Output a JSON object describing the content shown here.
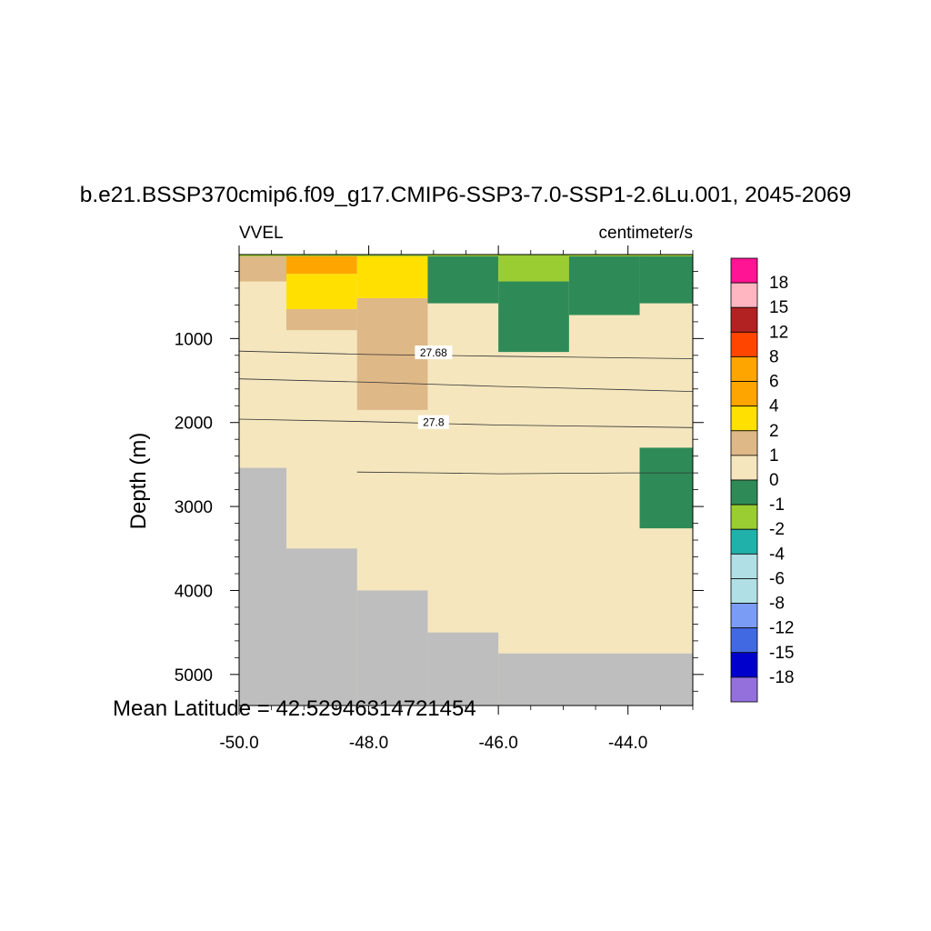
{
  "chart_data": {
    "type": "heatmap",
    "title": "b.e21.BSSP370cmip6.f09_g17.CMIP6-SSP3-7.0-SSP1-2.6Lu.001, 2045-2069",
    "left_string": "VVEL",
    "right_string": "centimeter/s",
    "ylabel": "Depth (m)",
    "footer": "Mean Latitude = 42.52946314721454",
    "x_ticks": [
      "-50.0",
      "-48.0",
      "-46.0",
      "-44.0"
    ],
    "x_tick_values": [
      -50,
      -48,
      -46,
      -44
    ],
    "y_ticks": [
      "1000",
      "2000",
      "3000",
      "4000",
      "5000"
    ],
    "y_tick_values": [
      1000,
      2000,
      3000,
      4000,
      5000
    ],
    "xlim": [
      -50,
      -43
    ],
    "ylim": [
      5370,
      0
    ],
    "background_color": "#f5e6be",
    "missing_color": "#bebebe",
    "cells": [
      {
        "x": [
          -50,
          -49.27
        ],
        "y": [
          0,
          320
        ],
        "level": "1 to 2",
        "color": "#deb887"
      },
      {
        "x": [
          -49.27,
          -48.18
        ],
        "y": [
          0,
          230
        ],
        "level": "4 to 6",
        "color": "#ffa500"
      },
      {
        "x": [
          -49.27,
          -48.18
        ],
        "y": [
          230,
          650
        ],
        "level": "2 to 4",
        "color": "#ffe000"
      },
      {
        "x": [
          -49.27,
          -48.18
        ],
        "y": [
          650,
          900
        ],
        "level": "1 to 2",
        "color": "#deb887"
      },
      {
        "x": [
          -48.18,
          -47.09
        ],
        "y": [
          0,
          520
        ],
        "level": "2 to 4",
        "color": "#ffe000"
      },
      {
        "x": [
          -48.18,
          -47.09
        ],
        "y": [
          520,
          1850
        ],
        "level": "1 to 2",
        "color": "#deb887"
      },
      {
        "x": [
          -47.09,
          -46.0
        ],
        "y": [
          0,
          580
        ],
        "level": "-1 to 0",
        "color": "#2e8b57"
      },
      {
        "x": [
          -46.0,
          -44.91
        ],
        "y": [
          0,
          320
        ],
        "level": "-2 to -1",
        "color": "#9acd32"
      },
      {
        "x": [
          -46.0,
          -44.91
        ],
        "y": [
          320,
          1160
        ],
        "level": "-1 to 0",
        "color": "#2e8b57"
      },
      {
        "x": [
          -44.91,
          -43.82
        ],
        "y": [
          0,
          720
        ],
        "level": "-1 to 0",
        "color": "#2e8b57"
      },
      {
        "x": [
          -43.82,
          -43.0
        ],
        "y": [
          0,
          580
        ],
        "level": "-1 to 0",
        "color": "#2e8b57"
      },
      {
        "x": [
          -43.82,
          -43.0
        ],
        "y": [
          2300,
          3260
        ],
        "level": "-1 to 0",
        "color": "#2e8b57"
      }
    ],
    "bathymetry": [
      {
        "x": [
          -50,
          -49.27
        ],
        "depth": 2540
      },
      {
        "x": [
          -49.27,
          -48.18
        ],
        "depth": 3500
      },
      {
        "x": [
          -48.18,
          -47.09
        ],
        "depth": 4000
      },
      {
        "x": [
          -47.09,
          -46.0
        ],
        "depth": 4500
      },
      {
        "x": [
          -46.0,
          -43.0
        ],
        "depth": 4750
      }
    ],
    "contours": [
      {
        "label": "",
        "points": [
          [
            -50,
            1150
          ],
          [
            -48,
            1190
          ],
          [
            -46,
            1210
          ],
          [
            -44,
            1230
          ],
          [
            -43,
            1240
          ]
        ]
      },
      {
        "label": "27.68",
        "label_at": [
          -47.0,
          1170
        ]
      },
      {
        "label": "",
        "points": [
          [
            -50,
            1480
          ],
          [
            -48,
            1520
          ],
          [
            -46,
            1570
          ],
          [
            -44,
            1610
          ],
          [
            -43,
            1630
          ]
        ]
      },
      {
        "label": "",
        "points": [
          [
            -50,
            1960
          ],
          [
            -48,
            1990
          ],
          [
            -46,
            2030
          ],
          [
            -44,
            2050
          ],
          [
            -43,
            2060
          ]
        ]
      },
      {
        "label": "27.8",
        "label_at": [
          -47.0,
          2000
        ]
      },
      {
        "label": "",
        "points": [
          [
            -48.18,
            2590
          ],
          [
            -47,
            2600
          ],
          [
            -46,
            2610
          ],
          [
            -44,
            2600
          ],
          [
            -43,
            2600
          ]
        ]
      }
    ],
    "colorbar": {
      "labels": [
        "18",
        "15",
        "12",
        "8",
        "6",
        "4",
        "2",
        "1",
        "0",
        "-1",
        "-2",
        "-4",
        "-6",
        "-8",
        "-12",
        "-15",
        "-18"
      ],
      "colors": [
        "#ff1493",
        "#ffb6c1",
        "#b22222",
        "#ff4500",
        "#ffa500",
        "#ffa500",
        "#ffe000",
        "#deb887",
        "#f5e6be",
        "#2e8b57",
        "#9acd32",
        "#20b2aa",
        "#b0e0e6",
        "#b0e0e6",
        "#7b9cf5",
        "#4169e1",
        "#0000cd",
        "#9370db"
      ]
    }
  }
}
